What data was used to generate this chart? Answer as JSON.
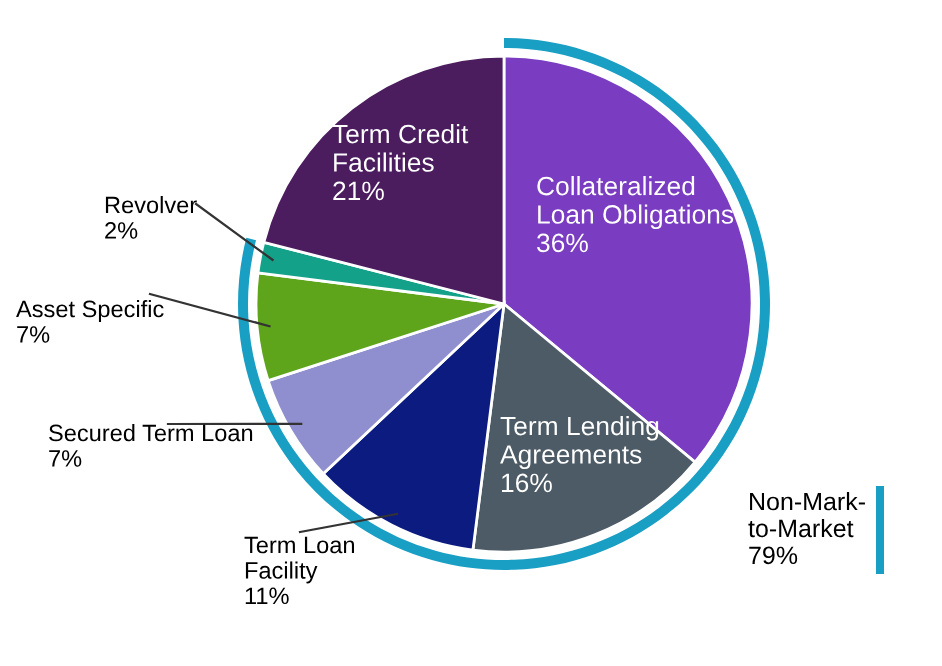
{
  "chart_data": {
    "type": "pie",
    "categories": [
      "Collateralized Loan Obligations",
      "Term Lending Agreements",
      "Term Loan Facility",
      "Secured Term Loan",
      "Asset Specific",
      "Revolver",
      "Term Credit Facilities"
    ],
    "values": [
      36,
      16,
      11,
      7,
      7,
      2,
      21
    ],
    "colors": [
      "#7a3cc1",
      "#4d5b66",
      "#0b1b80",
      "#8f8fcf",
      "#5ea51c",
      "#14a189",
      "#4b1c5e"
    ],
    "value_labels": [
      "36%",
      "16%",
      "11%",
      "7%",
      "7%",
      "2%",
      "21%"
    ],
    "annotations": [
      "Non-Mark-to-Market 79%"
    ]
  }
}
